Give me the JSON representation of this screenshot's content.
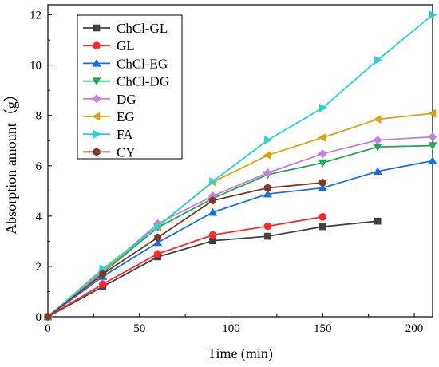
{
  "chart_data": {
    "type": "line",
    "xlabel": "Time (min)",
    "ylabel": "Absorption amount（g）",
    "xlim": [
      0,
      210
    ],
    "ylim": [
      0,
      12.4
    ],
    "xticks": [
      0,
      50,
      100,
      150,
      200
    ],
    "yticks": [
      0,
      2,
      4,
      6,
      8,
      10,
      12
    ],
    "grid": false,
    "legend_position": "top-left",
    "series": [
      {
        "name": "ChCl-GL",
        "color": "#404040",
        "marker": "square",
        "x": [
          0,
          30,
          60,
          90,
          120,
          150,
          180
        ],
        "y": [
          0,
          1.2,
          2.38,
          3.02,
          3.2,
          3.58,
          3.8
        ]
      },
      {
        "name": "GL",
        "color": "#ff2a2a",
        "marker": "circle",
        "x": [
          0,
          30,
          60,
          90,
          120,
          150
        ],
        "y": [
          0,
          1.3,
          2.5,
          3.25,
          3.6,
          3.97
        ]
      },
      {
        "name": "ChCl-EG",
        "color": "#1a6fe0",
        "marker": "triangle-up",
        "x": [
          0,
          30,
          60,
          90,
          120,
          150,
          180,
          210
        ],
        "y": [
          0,
          1.6,
          2.95,
          4.15,
          4.88,
          5.12,
          5.78,
          6.2
        ]
      },
      {
        "name": "ChCl-DG",
        "color": "#22a852",
        "marker": "triangle-down",
        "x": [
          0,
          30,
          60,
          90,
          120,
          150,
          180,
          210
        ],
        "y": [
          0,
          1.75,
          3.55,
          4.7,
          5.65,
          6.12,
          6.75,
          6.8
        ]
      },
      {
        "name": "DG",
        "color": "#c77ee0",
        "marker": "diamond",
        "x": [
          0,
          30,
          60,
          90,
          120,
          150,
          180,
          210
        ],
        "y": [
          0,
          1.8,
          3.7,
          4.8,
          5.72,
          6.48,
          7.02,
          7.15
        ]
      },
      {
        "name": "EG",
        "color": "#d9a413",
        "marker": "triangle-left",
        "x": [
          0,
          30,
          60,
          90,
          120,
          150,
          180,
          210
        ],
        "y": [
          0,
          1.85,
          3.6,
          5.35,
          6.42,
          7.12,
          7.85,
          8.08
        ]
      },
      {
        "name": "FA",
        "color": "#2ad1d8",
        "marker": "triangle-right",
        "x": [
          0,
          30,
          60,
          90,
          120,
          150,
          180,
          210
        ],
        "y": [
          0,
          1.9,
          3.58,
          5.38,
          7.02,
          8.3,
          10.2,
          12.0
        ]
      },
      {
        "name": "CY",
        "color": "#7a3a2a",
        "marker": "hexagon",
        "x": [
          0,
          30,
          60,
          90,
          120,
          150
        ],
        "y": [
          0,
          1.7,
          3.15,
          4.62,
          5.12,
          5.33
        ]
      }
    ]
  }
}
